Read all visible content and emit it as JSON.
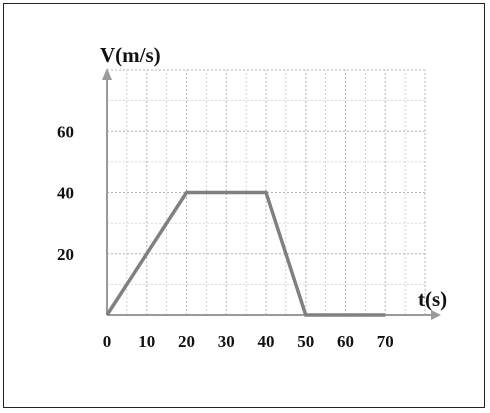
{
  "chart_data": {
    "type": "line",
    "title": "",
    "xlabel": "t(s)",
    "ylabel": "V(m/s)",
    "xlim": [
      0,
      80
    ],
    "ylim": [
      0,
      80
    ],
    "grid": true,
    "grid_style": "dotted",
    "x_ticks": [
      "0",
      "10",
      "20",
      "30",
      "40",
      "50",
      "60",
      "70"
    ],
    "y_ticks": [
      "20",
      "40",
      "60"
    ],
    "series": [
      {
        "x": [
          0,
          20,
          40,
          50,
          70
        ],
        "y": [
          0,
          40,
          40,
          0,
          0
        ]
      }
    ],
    "colors": {
      "line": "#808080",
      "axis": "#9a9a9a",
      "grid": "#b5b5b5",
      "text": "#111111"
    }
  }
}
